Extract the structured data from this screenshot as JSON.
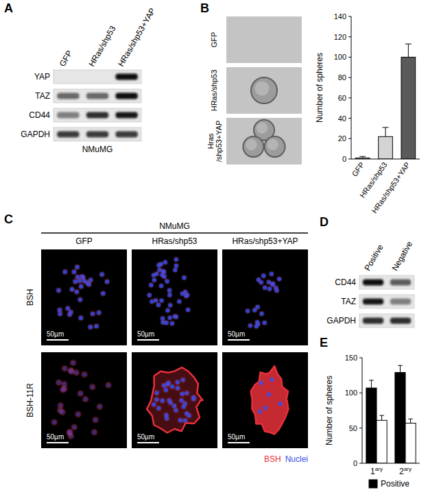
{
  "chart_data": [
    {
      "type": "bar",
      "y_label": "Number of spheres",
      "categories": [
        "GFP",
        "HRas/shp53",
        "HRas/shp53+YAP"
      ],
      "values": [
        1,
        22,
        100
      ],
      "errors": [
        1.5,
        9,
        13
      ],
      "colors": [
        "#ffffff",
        "#d4d4d4",
        "#5a5a5a"
      ],
      "ylim": [
        0,
        140
      ],
      "yticks": [
        0,
        20,
        40,
        60,
        80,
        100,
        120,
        140
      ]
    },
    {
      "type": "bar",
      "y_label": "Number of spheres",
      "categories": [
        "1ary",
        "2ary"
      ],
      "series": [
        {
          "name": "Positive",
          "color": "#000000",
          "values": [
            107,
            129
          ],
          "errors": [
            11,
            10
          ]
        },
        {
          "color": "#ffffff",
          "values": [
            61,
            57
          ],
          "errors": [
            7,
            6
          ]
        }
      ],
      "ylim": [
        0,
        150
      ],
      "yticks": [
        0,
        50,
        100,
        150
      ],
      "legend": "bottom"
    }
  ],
  "figure": {
    "panels": [
      {
        "letter": "A",
        "columns": [
          "GFP",
          "HRas/shp53",
          "HRas/shp53+YAP"
        ],
        "rows": [
          {
            "label": "YAP",
            "intensity": [
              0,
              0,
              0.95
            ]
          },
          {
            "label": "TAZ",
            "intensity": [
              0.55,
              0.55,
              0.95
            ]
          },
          {
            "label": "CD44",
            "intensity": [
              0.45,
              0.8,
              0.9
            ]
          },
          {
            "label": "GAPDH",
            "intensity": [
              0.75,
              0.75,
              0.75
            ]
          }
        ],
        "caption": "NMuMG"
      },
      {
        "letter": "B",
        "images": [
          "GFP",
          "HRas/shp53",
          "Hras/shp53+YAP"
        ],
        "spheres": [
          0,
          1,
          3
        ]
      },
      {
        "letter": "C",
        "title": "NMuMG",
        "columns": [
          "GFP",
          "HRas/shp53",
          "HRas/shp53+YAP"
        ],
        "rows": [
          "BSH",
          "BSH-11R"
        ],
        "scale_bar": "50µm",
        "legend": [
          {
            "label": "BSH",
            "color": "#e8303a"
          },
          {
            "label": "Nuclei",
            "color": "#3a4ee8"
          }
        ]
      },
      {
        "letter": "D",
        "columns": [
          "Positive",
          "Negative"
        ],
        "rows": [
          {
            "label": "CD44",
            "intensity": [
              0.95,
              0.6
            ]
          },
          {
            "label": "TAZ",
            "intensity": [
              0.9,
              0.45
            ]
          },
          {
            "label": "GAPDH",
            "intensity": [
              0.8,
              0.8
            ]
          }
        ]
      },
      {
        "letter": "E"
      }
    ]
  }
}
